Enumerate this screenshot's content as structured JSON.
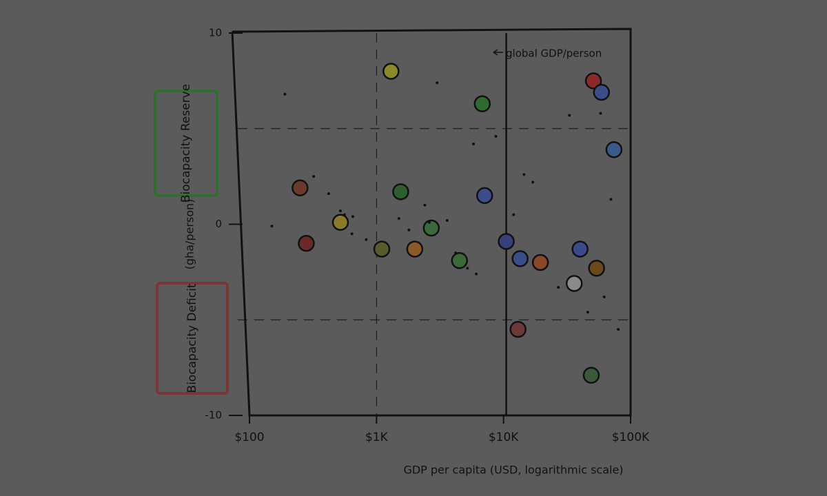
{
  "chart_data": {
    "type": "scatter",
    "x_label": "GDP per capita (USD, logarithmic scale)",
    "y_label": "(gha/person)",
    "reserve_label": "Biocapacity Reserve",
    "deficit_label": "Biocapacity Deficit",
    "annotation": "global GDP/person",
    "reference_x": 10500,
    "log_x": true,
    "xlim": [
      100,
      100000
    ],
    "ylim": [
      -10,
      10
    ],
    "xticks": [
      {
        "value": 100,
        "label": "$100"
      },
      {
        "value": 1000,
        "label": "$1K"
      },
      {
        "value": 10000,
        "label": "$10K"
      },
      {
        "value": 100000,
        "label": "$100K"
      }
    ],
    "yticks": [
      -10,
      0,
      10
    ],
    "xgrid": [
      1000,
      100000
    ],
    "ygrid": [
      -5,
      5
    ],
    "series": [
      {
        "marker": "flag",
        "x": [
          1300,
          6800,
          51000,
          59000,
          74000,
          250,
          1550,
          7100,
          520,
          2700,
          280,
          1100,
          2000,
          4500,
          10500,
          13500,
          19500,
          40000,
          54000,
          36000,
          13000,
          49000
        ],
        "y": [
          8.0,
          6.3,
          7.5,
          6.9,
          3.9,
          1.9,
          1.7,
          1.5,
          0.1,
          -0.2,
          -1.0,
          -1.3,
          -1.3,
          -1.9,
          -0.9,
          -1.8,
          -2.0,
          -1.3,
          -2.3,
          -3.1,
          -5.5,
          -7.9
        ],
        "colors": [
          "#8a8a2a",
          "#2f6a2f",
          "#8a2a2a",
          "#3a4f8a",
          "#3a5a8a",
          "#6a3a2a",
          "#2f5f2f",
          "#3a4f8a",
          "#8a7a2a",
          "#3a6a3a",
          "#6a2a2a",
          "#5a5a2a",
          "#8a5a2a",
          "#3a6a3a",
          "#3a3f7a",
          "#3a4f8a",
          "#8a4a2a",
          "#3a4a8a",
          "#6a4a1a",
          "#8a8a8a",
          "#6a3a3a",
          "#3a5a3a"
        ]
      },
      {
        "marker": "dot",
        "color": "#111111",
        "x": [
          190,
          320,
          420,
          560,
          640,
          830,
          1500,
          2600,
          3600,
          4200,
          5200,
          6100,
          8700,
          14500,
          17000,
          27000,
          33000,
          58000,
          70000,
          80000,
          520,
          650,
          1800,
          2400,
          3000,
          5800,
          12000,
          62000,
          150,
          46000
        ],
        "y": [
          6.8,
          2.5,
          1.6,
          0.5,
          -0.5,
          -0.8,
          0.3,
          0.1,
          0.2,
          -1.5,
          -2.3,
          -2.6,
          4.6,
          2.6,
          2.2,
          -3.3,
          5.7,
          5.8,
          1.3,
          -5.5,
          0.7,
          0.4,
          -0.3,
          1.0,
          7.4,
          4.2,
          0.5,
          -3.8,
          -0.1,
          -4.6
        ]
      }
    ]
  }
}
